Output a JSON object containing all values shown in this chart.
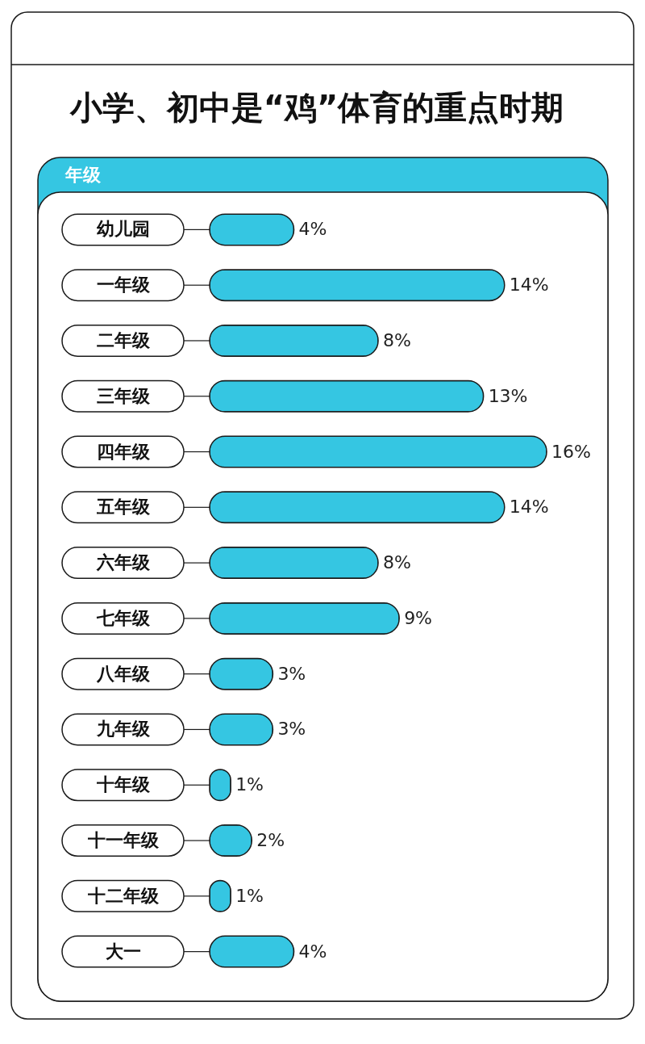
{
  "chart_data": {
    "type": "bar",
    "orientation": "horizontal",
    "title": "小学、初中是“鸡”体育的重点时期",
    "ylabel": "年级",
    "categories": [
      "幼儿园",
      "一年级",
      "二年级",
      "三年级",
      "四年级",
      "五年级",
      "六年级",
      "七年级",
      "八年级",
      "九年级",
      "十年级",
      "十一年级",
      "十二年级",
      "大一"
    ],
    "values": [
      4,
      14,
      8,
      13,
      16,
      14,
      8,
      9,
      3,
      3,
      1,
      2,
      1,
      4
    ],
    "value_labels": [
      "4%",
      "14%",
      "8%",
      "13%",
      "16%",
      "14%",
      "8%",
      "9%",
      "3%",
      "3%",
      "1%",
      "2%",
      "1%",
      "4%"
    ],
    "color": "#35c6e2"
  }
}
